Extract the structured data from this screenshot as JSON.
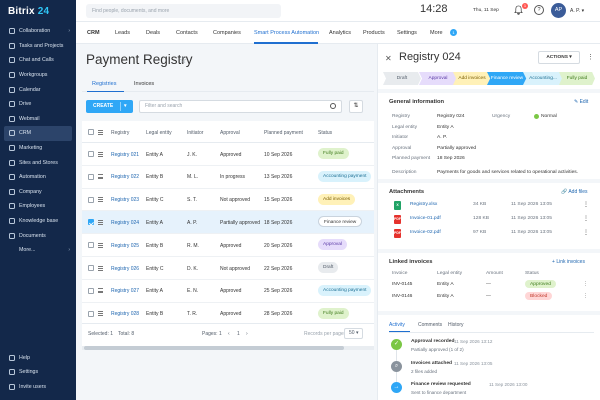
{
  "app": {
    "logo_name": "Bitrix",
    "logo_num": "24"
  },
  "sidebar": {
    "items": [
      {
        "label": "Collaboration",
        "icon": "chat-bubble-icon",
        "chev": true
      },
      {
        "label": "Tasks and Projects",
        "icon": "checklist-icon"
      },
      {
        "label": "Chat and Calls",
        "icon": "chat-icon"
      },
      {
        "label": "Workgroups",
        "icon": "group-icon"
      },
      {
        "label": "Calendar",
        "icon": "calendar-icon"
      },
      {
        "label": "Drive",
        "icon": "drive-icon"
      },
      {
        "label": "Webmail",
        "icon": "mail-icon"
      },
      {
        "label": "CRM",
        "icon": "crm-icon",
        "active": true
      },
      {
        "label": "Marketing",
        "icon": "megaphone-icon"
      },
      {
        "label": "Sites and Stores",
        "icon": "store-icon"
      },
      {
        "label": "Automation",
        "icon": "automation-icon"
      },
      {
        "label": "Company",
        "icon": "company-icon"
      },
      {
        "label": "Employees",
        "icon": "employees-icon"
      },
      {
        "label": "Knowledge base",
        "icon": "book-icon"
      },
      {
        "label": "Documents",
        "icon": "document-icon"
      },
      {
        "label": "More...",
        "icon": "",
        "chev": true
      }
    ],
    "bottom": [
      {
        "label": "Help",
        "icon": "help-icon"
      },
      {
        "label": "Settings",
        "icon": "gear-icon"
      },
      {
        "label": "Invite users",
        "icon": "invite-icon"
      }
    ]
  },
  "topbar": {
    "search_placeholder": "Find people, documents, and more",
    "time": "14:28",
    "date": "Thu, 11 Sep",
    "notifications": "1",
    "avatar": "AP",
    "user": "A. P.",
    "help": "?"
  },
  "crm_tabs": [
    "CRM",
    "Leads",
    "Deals",
    "Contacts",
    "Companies",
    "Smart Process Automation",
    "Analytics",
    "Products",
    "Settings",
    "More"
  ],
  "crm_tabs_more_count": "1",
  "page": {
    "title": "Payment Registry",
    "tabs": [
      "Registries",
      "Invoices"
    ],
    "create": "CREATE",
    "filter_placeholder": "Filter and search"
  },
  "grid": {
    "headers": [
      "Registry",
      "Legal entity",
      "Initiator",
      "Approval",
      "Planned payment",
      "Status"
    ],
    "rows": [
      {
        "id": "Registry 021",
        "entity": "Entity A",
        "initiator": "J. K.",
        "approval": "Approved",
        "date": "10 Sep 2026",
        "status": "Fully paid",
        "status_color": "#dff2cc",
        "status_text": "#3f7b1c"
      },
      {
        "id": "Registry 022",
        "entity": "Entity B",
        "initiator": "M. L.",
        "approval": "In progress",
        "date": "13 Sep 2026",
        "status": "Accounting payment",
        "status_color": "#d9f2fc",
        "status_text": "#1b6f94"
      },
      {
        "id": "Registry 023",
        "entity": "Entity C",
        "initiator": "S. T.",
        "approval": "Not approved",
        "date": "15 Sep 2026",
        "status": "Add invoices",
        "status_color": "#fff1b8",
        "status_text": "#7a5d00"
      },
      {
        "id": "Registry 024",
        "entity": "Entity A",
        "initiator": "A. P.",
        "approval": "Partially approved",
        "date": "18 Sep 2026",
        "status": "Finance review",
        "status_color": "#ffffff",
        "status_text": "#333333",
        "selected": true
      },
      {
        "id": "Registry 025",
        "entity": "Entity B",
        "initiator": "R. M.",
        "approval": "Approved",
        "date": "20 Sep 2026",
        "status": "Approval",
        "status_color": "#e6dcfb",
        "status_text": "#5b3aa6"
      },
      {
        "id": "Registry 026",
        "entity": "Entity C",
        "initiator": "D. K.",
        "approval": "Not approved",
        "date": "22 Sep 2026",
        "status": "Draft",
        "status_color": "#e8ebee",
        "status_text": "#525c69"
      },
      {
        "id": "Registry 027",
        "entity": "Entity A",
        "initiator": "E. N.",
        "approval": "Approved",
        "date": "25 Sep 2026",
        "status": "Accounting payment",
        "status_color": "#d9f2fc",
        "status_text": "#1b6f94"
      },
      {
        "id": "Registry 028",
        "entity": "Entity B",
        "initiator": "T. R.",
        "approval": "Approved",
        "date": "28 Sep 2026",
        "status": "Fully paid",
        "status_color": "#dff2cc",
        "status_text": "#3f7b1c"
      }
    ]
  },
  "footer": {
    "selected": "Selected: 1",
    "total": "Total: 8",
    "pages": "Pages: 1",
    "page_num": "1",
    "records_label": "Records per page:",
    "records": "50"
  },
  "panel": {
    "title": "Registry 024",
    "actions": "ACTIONS",
    "stages": [
      {
        "label": "Draft",
        "bg": "#e8ebee",
        "fg": "#525c69"
      },
      {
        "label": "Approval",
        "bg": "#e6dcfb",
        "fg": "#5b3aa6"
      },
      {
        "label": "Add invoices",
        "bg": "#fff1b8",
        "fg": "#7a5d00"
      },
      {
        "label": "Finance review",
        "bg": "#2fa7f6",
        "fg": "#ffffff"
      },
      {
        "label": "Accounting...",
        "bg": "#d9f2fc",
        "fg": "#1b6f94"
      },
      {
        "label": "Fully paid",
        "bg": "#dff2cc",
        "fg": "#3f7b1c"
      }
    ],
    "general": {
      "title": "General information",
      "edit": "Edit",
      "fields": [
        {
          "label": "Registry",
          "value": "Registry 024"
        },
        {
          "label": "Legal entity",
          "value": "Entity A"
        },
        {
          "label": "Initiator",
          "value": "A. P."
        },
        {
          "label": "Approval",
          "value": "Partially approved"
        },
        {
          "label": "Planned payment",
          "value": "18 Sep 2026"
        },
        {
          "label": "Description",
          "value": "Payments for goods and services related to operational activities."
        }
      ],
      "urgency_label": "Urgency",
      "urgency_value": "Normal"
    },
    "attachments": {
      "title": "Attachments",
      "add": "Add files",
      "files": [
        {
          "name": "Registry.xlsx",
          "size": "34 KB",
          "date": "11 Sep 2026 13:05",
          "type": "X",
          "color": "#21a366"
        },
        {
          "name": "Invoice-01.pdf",
          "size": "128 KB",
          "date": "11 Sep 2026 13:05",
          "type": "PDF",
          "color": "#e5322d"
        },
        {
          "name": "Invoice-02.pdf",
          "size": "97 KB",
          "date": "11 Sep 2026 13:05",
          "type": "PDF",
          "color": "#e5322d"
        }
      ]
    },
    "linked": {
      "title": "Linked invoices",
      "link": "Link invoices",
      "headers": [
        "Invoice",
        "Legal entity",
        "Amount",
        "Status"
      ],
      "rows": [
        {
          "id": "INV-0145",
          "entity": "Entity A",
          "amount": "—",
          "status": "Approved",
          "bg": "#dff2cc",
          "fg": "#3f7b1c"
        },
        {
          "id": "INV-0146",
          "entity": "Entity A",
          "amount": "—",
          "status": "Blocked",
          "bg": "#ffd6d6",
          "fg": "#c0392b"
        }
      ]
    },
    "activity": {
      "tabs": [
        "Activity",
        "Comments",
        "History"
      ],
      "items": [
        {
          "title": "Approval recorded",
          "time": "11 Sep 2026 13:12",
          "sub": "Partially approved (1 of 2)",
          "color": "#7bc745",
          "glyph": "✓"
        },
        {
          "title": "Invoices attached",
          "time": "11 Sep 2026 13:05",
          "sub": "2 files added",
          "color": "#8a939d",
          "glyph": "⌕"
        },
        {
          "title": "Finance review requested",
          "time": "11 Sep 2026 13:00",
          "sub": "Sent to finance department",
          "color": "#2fa7f6",
          "glyph": "→"
        }
      ]
    }
  }
}
